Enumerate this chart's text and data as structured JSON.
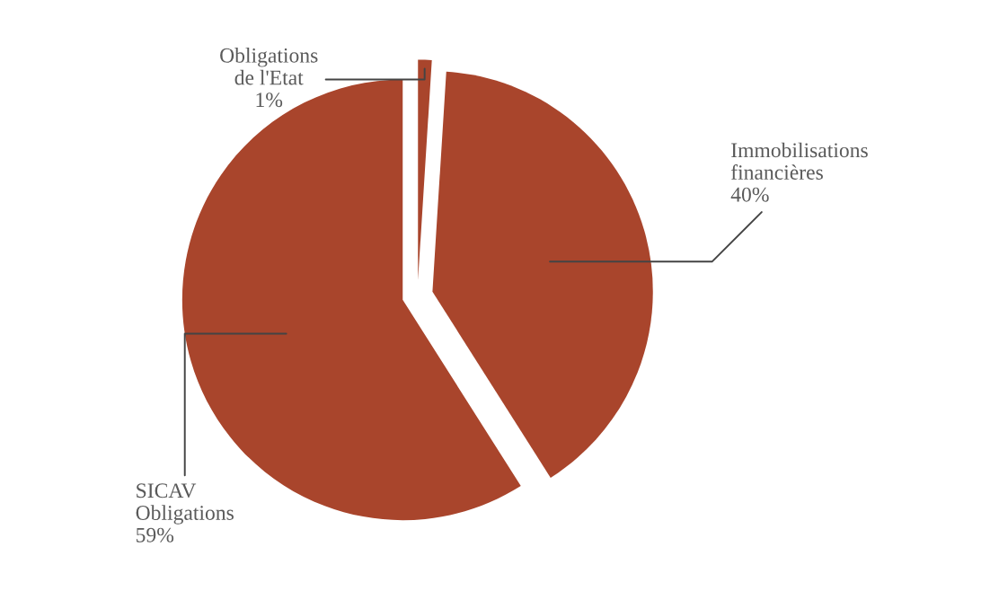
{
  "chart_data": {
    "type": "pie",
    "categories": [
      "Obligations\nde l'Etat",
      "Immobilisations\nfinancières",
      "SICAV\nObligations"
    ],
    "values": [
      1,
      40,
      59
    ],
    "value_labels": [
      "1%",
      "40%",
      "59%"
    ],
    "colors": [
      "#a9452c",
      "#a9452c",
      "#a9452c"
    ],
    "legend": false
  }
}
